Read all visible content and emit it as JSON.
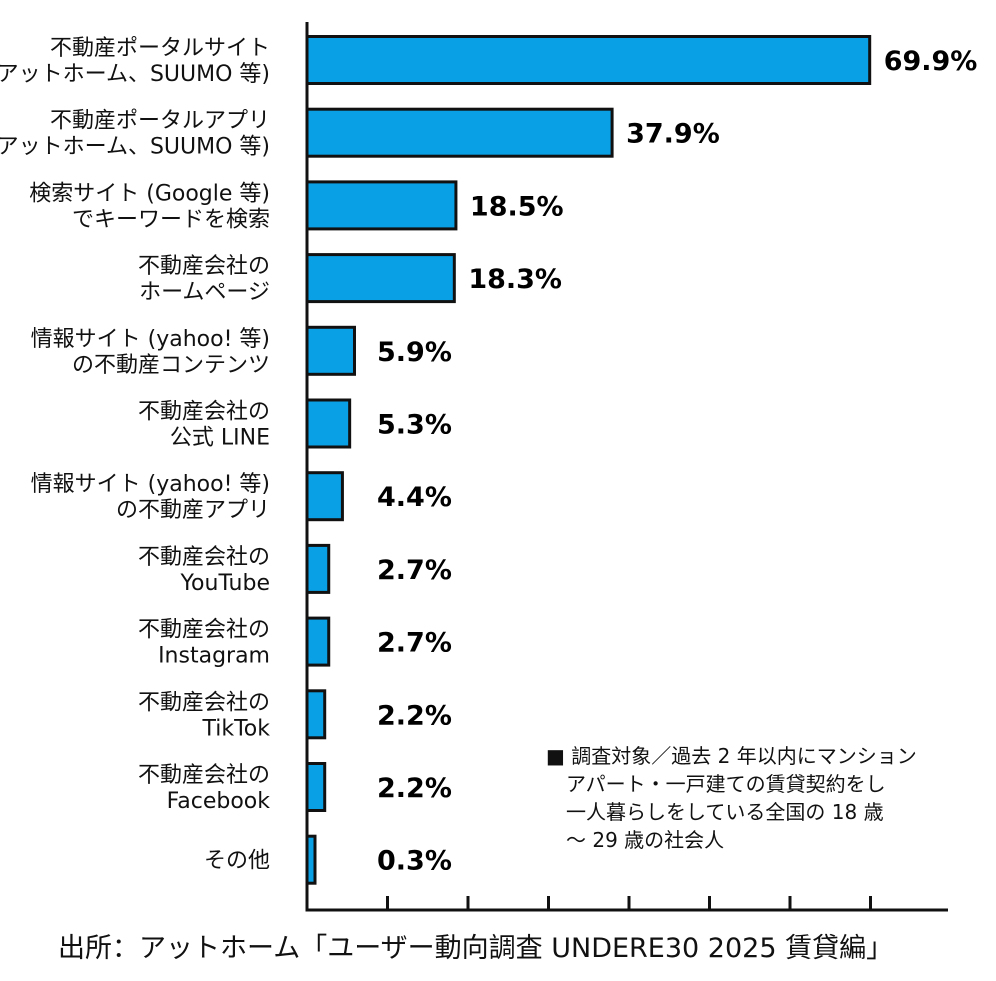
{
  "chart_data": {
    "type": "bar",
    "orientation": "horizontal",
    "title": "",
    "xlabel": "",
    "ylabel": "",
    "xlim": [
      0,
      70
    ],
    "grid": false,
    "bar_color": "#0aa0e6",
    "categories": [
      [
        "不動産ポータルサイト",
        "(アットホーム、SUUMO 等)"
      ],
      [
        "不動産ポータルアプリ",
        "(アットホーム、SUUMO 等)"
      ],
      [
        "検索サイト (Google 等)",
        "でキーワードを検索"
      ],
      [
        "不動産会社の",
        "ホームページ"
      ],
      [
        "情報サイト (yahoo! 等)",
        "の不動産コンテンツ"
      ],
      [
        "不動産会社の",
        "公式 LINE"
      ],
      [
        "情報サイト (yahoo! 等)",
        "の不動産アプリ"
      ],
      [
        "不動産会社の",
        "YouTube"
      ],
      [
        "不動産会社の",
        "Instagram"
      ],
      [
        "不動産会社の",
        "TikTok"
      ],
      [
        "不動産会社の",
        "Facebook"
      ],
      [
        "その他"
      ]
    ],
    "values": [
      69.9,
      37.9,
      18.5,
      18.3,
      5.9,
      5.3,
      4.4,
      2.7,
      2.7,
      2.2,
      2.2,
      0.3
    ],
    "value_labels": [
      "69.9%",
      "37.9%",
      "18.5%",
      "18.3%",
      "5.9%",
      "5.3%",
      "4.4%",
      "2.7%",
      "2.7%",
      "2.2%",
      "2.2%",
      "0.3%"
    ]
  },
  "note": {
    "lines": [
      "■ 調査対象／過去 2 年以内にマンション",
      "アパート・一戸建ての賃貸契約をし",
      "一人暮らしをしている全国の 18 歳",
      "～ 29 歳の社会人"
    ]
  },
  "source": "出所：アットホーム「ユーザー動向調査 UNDERE30 2025 賃貸編」"
}
